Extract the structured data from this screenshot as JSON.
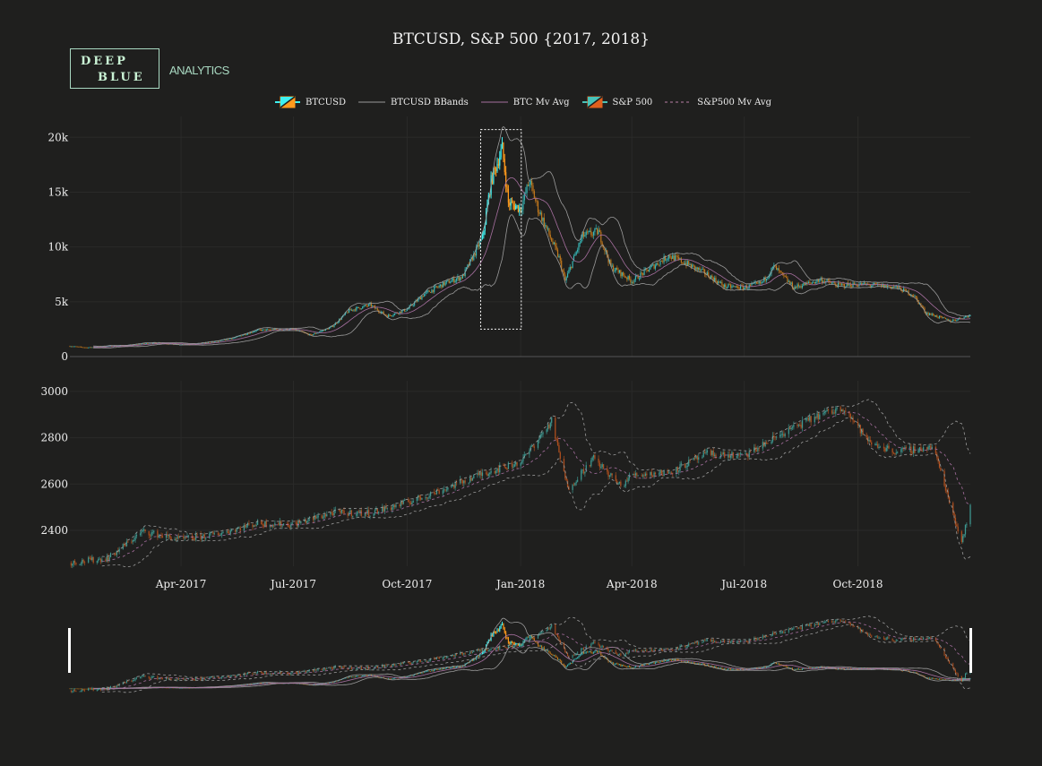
{
  "chart_data": {
    "type": "candlestick",
    "title": "BTCUSD, S&P 500  {2017, 2018}",
    "logo": {
      "line1": "DEEP",
      "line2": "BLUE",
      "sub": "ANALYTICS"
    },
    "legend": [
      {
        "label": "BTCUSD",
        "kind": "candle",
        "up": "#3ff0ef",
        "down": "#ff9a1c"
      },
      {
        "label": "BTCUSD BBands",
        "kind": "line",
        "color": "#9a9a9a"
      },
      {
        "label": "BTC Mv Avg",
        "kind": "line",
        "color": "#a66f9f"
      },
      {
        "label": "S&P 500",
        "kind": "candle",
        "up": "#48c2b8",
        "down": "#e0601e"
      },
      {
        "label": "S&P500 Mv Avg",
        "kind": "dash",
        "color": "#b77fa6"
      }
    ],
    "x_range": [
      "2017-01-01",
      "2018-12-31"
    ],
    "x_ticks": [
      {
        "date": "2017-04-01",
        "label": "Apr-2017"
      },
      {
        "date": "2017-07-01",
        "label": "Jul-2017"
      },
      {
        "date": "2017-10-01",
        "label": "Oct-2017"
      },
      {
        "date": "2018-01-01",
        "label": "Jan-2018"
      },
      {
        "date": "2018-04-01",
        "label": "Apr-2018"
      },
      {
        "date": "2018-07-01",
        "label": "Jul-2018"
      },
      {
        "date": "2018-10-01",
        "label": "Oct-2018"
      }
    ],
    "btc": {
      "ylim": [
        0,
        21900
      ],
      "y_ticks": [
        {
          "v": 0,
          "label": "0"
        },
        {
          "v": 5000,
          "label": "5k"
        },
        {
          "v": 10000,
          "label": "10k"
        },
        {
          "v": 15000,
          "label": "15k"
        },
        {
          "v": 20000,
          "label": "20k"
        }
      ],
      "highlight": {
        "start": "2017-12-01",
        "end": "2017-12-31",
        "low": 2500,
        "high": 20700
      },
      "ma_window": 20,
      "closes": [
        [
          "2017-01-01",
          960
        ],
        [
          "2017-01-15",
          820
        ],
        [
          "2017-02-01",
          970
        ],
        [
          "2017-02-15",
          1000
        ],
        [
          "2017-03-01",
          1190
        ],
        [
          "2017-03-15",
          1250
        ],
        [
          "2017-04-01",
          1080
        ],
        [
          "2017-04-15",
          1180
        ],
        [
          "2017-05-01",
          1400
        ],
        [
          "2017-05-15",
          1750
        ],
        [
          "2017-06-01",
          2400
        ],
        [
          "2017-06-15",
          2450
        ],
        [
          "2017-07-01",
          2500
        ],
        [
          "2017-07-15",
          1950
        ],
        [
          "2017-08-01",
          2700
        ],
        [
          "2017-08-15",
          4200
        ],
        [
          "2017-09-01",
          4700
        ],
        [
          "2017-09-15",
          3700
        ],
        [
          "2017-10-01",
          4300
        ],
        [
          "2017-10-15",
          5700
        ],
        [
          "2017-11-01",
          6700
        ],
        [
          "2017-11-15",
          7300
        ],
        [
          "2017-12-01",
          10800
        ],
        [
          "2017-12-08",
          16000
        ],
        [
          "2017-12-17",
          19000
        ],
        [
          "2017-12-22",
          14000
        ],
        [
          "2018-01-01",
          13500
        ],
        [
          "2018-01-08",
          16000
        ],
        [
          "2018-01-15",
          13500
        ],
        [
          "2018-02-01",
          9000
        ],
        [
          "2018-02-06",
          6900
        ],
        [
          "2018-02-20",
          11000
        ],
        [
          "2018-03-05",
          11400
        ],
        [
          "2018-03-15",
          8200
        ],
        [
          "2018-04-01",
          6900
        ],
        [
          "2018-04-15",
          8000
        ],
        [
          "2018-05-01",
          9200
        ],
        [
          "2018-05-15",
          8500
        ],
        [
          "2018-06-01",
          7500
        ],
        [
          "2018-06-15",
          6400
        ],
        [
          "2018-07-01",
          6300
        ],
        [
          "2018-07-15",
          6700
        ],
        [
          "2018-07-25",
          8200
        ],
        [
          "2018-08-10",
          6300
        ],
        [
          "2018-09-01",
          7000
        ],
        [
          "2018-09-15",
          6500
        ],
        [
          "2018-10-01",
          6600
        ],
        [
          "2018-10-15",
          6500
        ],
        [
          "2018-11-01",
          6350
        ],
        [
          "2018-11-15",
          5600
        ],
        [
          "2018-11-25",
          4000
        ],
        [
          "2018-12-15",
          3250
        ],
        [
          "2018-12-31",
          3750
        ]
      ]
    },
    "sp500": {
      "ylim": [
        2245,
        3046
      ],
      "y_ticks": [
        {
          "v": 2400,
          "label": "2400"
        },
        {
          "v": 2600,
          "label": "2600"
        },
        {
          "v": 2800,
          "label": "2800"
        },
        {
          "v": 3000,
          "label": "3000"
        }
      ],
      "ma_window": 20,
      "closes": [
        [
          "2017-01-01",
          2260
        ],
        [
          "2017-02-01",
          2280
        ],
        [
          "2017-03-01",
          2395
        ],
        [
          "2017-04-01",
          2360
        ],
        [
          "2017-05-01",
          2385
        ],
        [
          "2017-06-01",
          2430
        ],
        [
          "2017-07-01",
          2425
        ],
        [
          "2017-08-01",
          2475
        ],
        [
          "2017-09-01",
          2475
        ],
        [
          "2017-10-01",
          2520
        ],
        [
          "2017-11-01",
          2580
        ],
        [
          "2017-12-01",
          2645
        ],
        [
          "2018-01-01",
          2695
        ],
        [
          "2018-01-26",
          2870
        ],
        [
          "2018-02-08",
          2580
        ],
        [
          "2018-03-01",
          2710
        ],
        [
          "2018-03-23",
          2590
        ],
        [
          "2018-04-01",
          2640
        ],
        [
          "2018-05-01",
          2650
        ],
        [
          "2018-06-01",
          2730
        ],
        [
          "2018-07-01",
          2720
        ],
        [
          "2018-08-01",
          2820
        ],
        [
          "2018-09-01",
          2900
        ],
        [
          "2018-09-20",
          2930
        ],
        [
          "2018-10-10",
          2780
        ],
        [
          "2018-11-01",
          2740
        ],
        [
          "2018-12-01",
          2760
        ],
        [
          "2018-12-24",
          2350
        ],
        [
          "2018-12-31",
          2505
        ]
      ]
    }
  }
}
